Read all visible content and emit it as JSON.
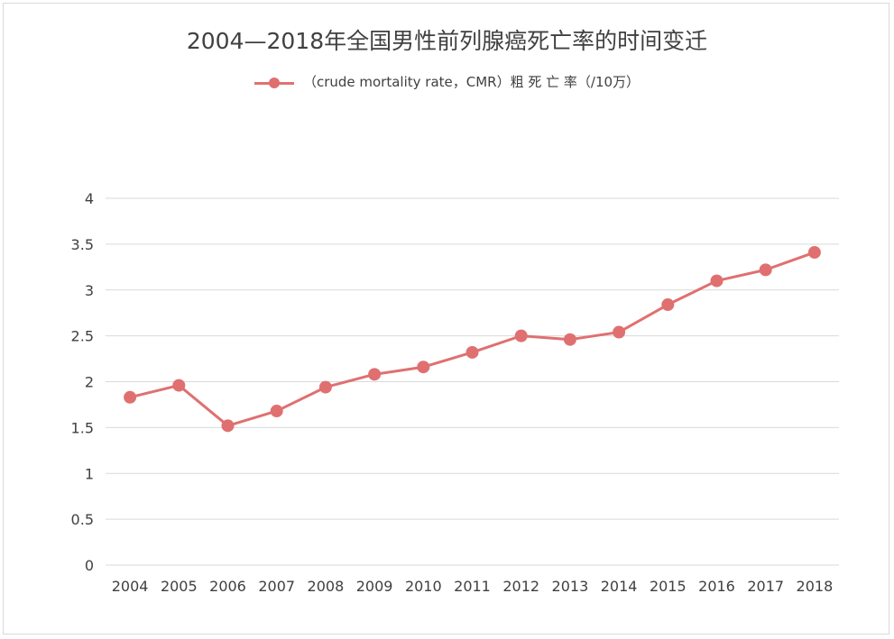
{
  "chart_data": {
    "type": "line",
    "title": "2004—2018年全国男性前列腺癌死亡率的时间变迁",
    "xlabel": "",
    "ylabel": "",
    "categories": [
      "2004",
      "2005",
      "2006",
      "2007",
      "2008",
      "2009",
      "2010",
      "2011",
      "2012",
      "2013",
      "2014",
      "2015",
      "2016",
      "2017",
      "2018"
    ],
    "series": [
      {
        "name": "（crude mortality rate，CMR）粗 死 亡 率（/10万）",
        "color": "#E07070",
        "values": [
          1.83,
          1.96,
          1.52,
          1.68,
          1.94,
          2.08,
          2.16,
          2.32,
          2.5,
          2.46,
          2.54,
          2.84,
          3.1,
          3.22,
          3.41
        ]
      }
    ],
    "ylim": [
      0,
      4
    ],
    "yticks": [
      "0",
      "0.5",
      "1",
      "1.5",
      "2",
      "2.5",
      "3",
      "3.5",
      "4"
    ],
    "grid": true,
    "legend_position": "top"
  }
}
